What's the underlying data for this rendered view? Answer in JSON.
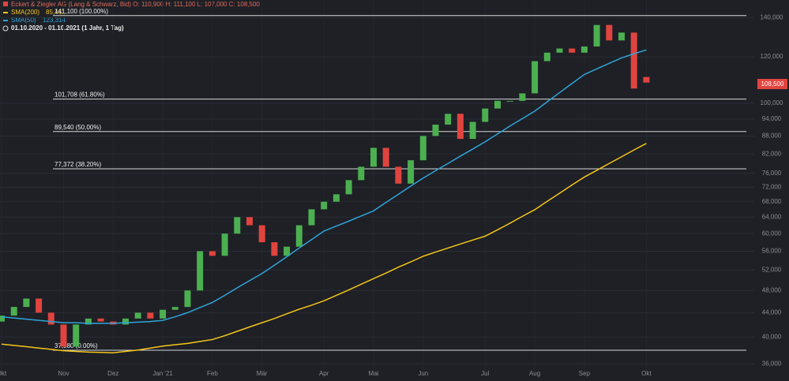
{
  "chart_data": {
    "type": "candlestick",
    "title": "Eckert & Ziegler AG (Lang & Schwarz, Bid)  O: 110,900  H: 111,100  L: 107,000  C: 108,500",
    "period": "01.10.2020 - 01.10.2021  (1 Jahr, 1 Tag)",
    "price_tag": "108,500",
    "log_scale": true,
    "grid": true,
    "up_color": "#4caf50",
    "down_color": "#e0443e",
    "categories": [
      "Okt",
      null,
      null,
      null,
      null,
      "Nov",
      null,
      null,
      null,
      "Dez",
      null,
      null,
      null,
      "Jan '21",
      null,
      null,
      null,
      "Feb",
      null,
      null,
      null,
      "Mär",
      null,
      null,
      null,
      null,
      "Apr",
      null,
      null,
      null,
      "Mai",
      null,
      null,
      null,
      "Jun",
      null,
      null,
      null,
      null,
      "Jul",
      null,
      null,
      null,
      "Aug",
      null,
      null,
      null,
      "Sep",
      null,
      null,
      null,
      null,
      "Okt"
    ],
    "open": [
      42500,
      43500,
      45000,
      46500,
      44000,
      42000,
      38500,
      42000,
      43000,
      42500,
      42000,
      43000,
      44000,
      43000,
      44500,
      45000,
      48000,
      56000,
      55000,
      60000,
      64000,
      62000,
      58000,
      55000,
      57000,
      62000,
      66000,
      68000,
      70000,
      74000,
      78000,
      84000,
      78000,
      73000,
      80000,
      88000,
      92000,
      96000,
      87000,
      93000,
      98000,
      101000,
      101000,
      104000,
      118000,
      122000,
      124000,
      122000,
      125000,
      136000,
      128000,
      132000,
      110900
    ],
    "close": [
      43500,
      45000,
      46500,
      44000,
      42000,
      38500,
      42000,
      43000,
      42500,
      42000,
      43000,
      44000,
      43000,
      44500,
      45000,
      48000,
      56000,
      55000,
      60000,
      64000,
      62000,
      58000,
      55000,
      57000,
      62000,
      66000,
      68000,
      70000,
      74000,
      78000,
      84000,
      78000,
      73000,
      80000,
      88000,
      92000,
      96000,
      87000,
      93000,
      98000,
      101000,
      101000,
      104000,
      118000,
      122000,
      124000,
      122000,
      125000,
      136000,
      128000,
      132000,
      106000,
      108500
    ],
    "series": [
      {
        "name": "SMA(200)",
        "legend_value": "85,461",
        "color": "#f5c518",
        "values": [
          38900,
          38700,
          38500,
          38300,
          38100,
          37900,
          37800,
          37700,
          37650,
          37600,
          37800,
          38000,
          38300,
          38600,
          38800,
          39000,
          39300,
          39600,
          40200,
          40900,
          41600,
          42300,
          43000,
          43800,
          44600,
          45300,
          46100,
          47100,
          48100,
          49200,
          50300,
          51400,
          52600,
          53700,
          54900,
          55800,
          56700,
          57600,
          58500,
          59400,
          60900,
          62500,
          64200,
          65900,
          68100,
          70300,
          72600,
          74900,
          76900,
          79000,
          81100,
          83300,
          85461
        ]
      },
      {
        "name": "SMA(50)",
        "legend_value": "123,314",
        "color": "#2fa4d9",
        "values": [
          43300,
          43100,
          42900,
          42700,
          42500,
          42300,
          42300,
          42200,
          42200,
          42200,
          42300,
          42400,
          42500,
          42700,
          43300,
          44000,
          44900,
          45800,
          47100,
          48500,
          49900,
          51300,
          53000,
          54800,
          56700,
          58600,
          60600,
          61800,
          63000,
          64300,
          65600,
          67800,
          70000,
          72300,
          74600,
          76800,
          79000,
          81300,
          83600,
          86000,
          88700,
          91500,
          94200,
          97000,
          100600,
          104300,
          108100,
          112000,
          114500,
          117000,
          119500,
          121500,
          123314
        ]
      }
    ],
    "levels": [
      {
        "value": 141100,
        "label": "141,100 (100.00%)"
      },
      {
        "value": 101708,
        "label": "101,708 (61.80%)"
      },
      {
        "value": 89540,
        "label": "89,540 (50.00%)"
      },
      {
        "value": 77372,
        "label": "77,372 (38.20%)"
      },
      {
        "value": 37980,
        "label": "37,980 (0.00%)"
      }
    ],
    "ylim": [
      34500,
      150000
    ],
    "yticks": [
      {
        "value": 36000,
        "label": "36,000"
      },
      {
        "value": 40000,
        "label": "40,000"
      },
      {
        "value": 44000,
        "label": "44,000"
      },
      {
        "value": 48000,
        "label": "48,000"
      },
      {
        "value": 52000,
        "label": "52,000"
      },
      {
        "value": 56000,
        "label": "56,000"
      },
      {
        "value": 60000,
        "label": "60,000"
      },
      {
        "value": 64000,
        "label": "64,000"
      },
      {
        "value": 68000,
        "label": "68,000"
      },
      {
        "value": 72000,
        "label": "72,000"
      },
      {
        "value": 76000,
        "label": "76,000"
      },
      {
        "value": 82000,
        "label": "82,000"
      },
      {
        "value": 88000,
        "label": "88,000"
      },
      {
        "value": 94000,
        "label": "94,000"
      },
      {
        "value": 100000,
        "label": "100,000"
      },
      {
        "value": 120000,
        "label": "120,000"
      },
      {
        "value": 140000,
        "label": "140,000"
      }
    ]
  }
}
